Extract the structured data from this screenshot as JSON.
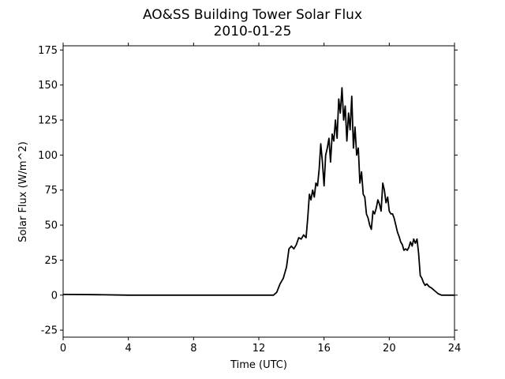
{
  "chart_data": {
    "type": "line",
    "title": "AO&SS Building Tower Solar Flux",
    "subtitle": "2010-01-25",
    "xlabel": "Time (UTC)",
    "ylabel": "Solar Flux (W/m^2)",
    "xlim": [
      0,
      24
    ],
    "ylim": [
      -30,
      178
    ],
    "xticks": [
      0,
      4,
      8,
      12,
      16,
      20,
      24
    ],
    "yticks": [
      -25,
      0,
      25,
      50,
      75,
      100,
      125,
      150,
      175
    ],
    "grid": false,
    "line_color": "#000000",
    "series": [
      {
        "x": [
          0,
          2,
          4,
          6,
          8,
          10,
          12,
          12.9,
          13.1,
          13.3,
          13.5,
          13.7,
          13.85,
          14.0,
          14.15,
          14.3,
          14.45,
          14.6,
          14.75,
          14.9,
          15.0,
          15.1,
          15.2,
          15.3,
          15.4,
          15.5,
          15.6,
          15.7,
          15.8,
          15.9,
          16.0,
          16.1,
          16.2,
          16.3,
          16.4,
          16.5,
          16.6,
          16.7,
          16.8,
          16.9,
          17.0,
          17.1,
          17.2,
          17.3,
          17.4,
          17.5,
          17.6,
          17.7,
          17.8,
          17.9,
          18.0,
          18.1,
          18.2,
          18.3,
          18.4,
          18.5,
          18.6,
          18.7,
          18.8,
          18.9,
          19.0,
          19.1,
          19.2,
          19.3,
          19.4,
          19.5,
          19.6,
          19.7,
          19.8,
          19.9,
          20.0,
          20.1,
          20.2,
          20.3,
          20.4,
          20.5,
          20.6,
          20.7,
          20.8,
          20.9,
          21.0,
          21.1,
          21.2,
          21.3,
          21.4,
          21.5,
          21.6,
          21.7,
          21.8,
          21.9,
          22.0,
          22.1,
          22.2,
          22.3,
          22.45,
          22.6,
          22.8,
          23.0,
          23.2,
          23.4,
          23.6,
          24.0
        ],
        "values": [
          0.5,
          0.3,
          0,
          0,
          0,
          0,
          0,
          0,
          2,
          8,
          12,
          20,
          33,
          35,
          33,
          36,
          41,
          40,
          43,
          41,
          55,
          72,
          68,
          75,
          70,
          80,
          78,
          90,
          108,
          95,
          78,
          100,
          105,
          112,
          95,
          115,
          110,
          125,
          112,
          140,
          130,
          148,
          125,
          135,
          110,
          130,
          118,
          142,
          105,
          120,
          100,
          105,
          80,
          88,
          72,
          70,
          58,
          55,
          50,
          47,
          60,
          58,
          62,
          68,
          65,
          60,
          80,
          75,
          66,
          70,
          60,
          58,
          58,
          55,
          50,
          45,
          42,
          38,
          36,
          32,
          33,
          32,
          34,
          38,
          35,
          40,
          37,
          40,
          30,
          14,
          12,
          9,
          7,
          8,
          6,
          5,
          3,
          1,
          0,
          0,
          0,
          0
        ]
      }
    ]
  }
}
